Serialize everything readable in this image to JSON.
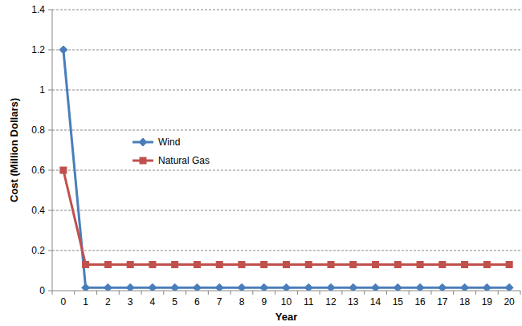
{
  "chart_data": {
    "type": "line",
    "x_label": "Year",
    "y_label": "Cost (Million Dollars)",
    "categories": [
      "0",
      "1",
      "2",
      "3",
      "4",
      "5",
      "6",
      "7",
      "8",
      "9",
      "10",
      "11",
      "12",
      "13",
      "14",
      "15",
      "16",
      "17",
      "18",
      "19",
      "20"
    ],
    "series": [
      {
        "name": "Wind",
        "color": "#4a7ebb",
        "marker": "diamond",
        "values": [
          1.2,
          0.015,
          0.015,
          0.015,
          0.015,
          0.015,
          0.015,
          0.015,
          0.015,
          0.015,
          0.015,
          0.015,
          0.015,
          0.015,
          0.015,
          0.015,
          0.015,
          0.015,
          0.015,
          0.015,
          0.015
        ]
      },
      {
        "name": "Natural Gas",
        "color": "#c0504d",
        "marker": "square",
        "values": [
          0.6,
          0.13,
          0.13,
          0.13,
          0.13,
          0.13,
          0.13,
          0.13,
          0.13,
          0.13,
          0.13,
          0.13,
          0.13,
          0.13,
          0.13,
          0.13,
          0.13,
          0.13,
          0.13,
          0.13,
          0.13
        ]
      }
    ],
    "ylim": [
      0,
      1.4
    ],
    "yticks": [
      0,
      0.2,
      0.4,
      0.6,
      0.8,
      1,
      1.2,
      1.4
    ],
    "grid": true,
    "legend": "left"
  }
}
